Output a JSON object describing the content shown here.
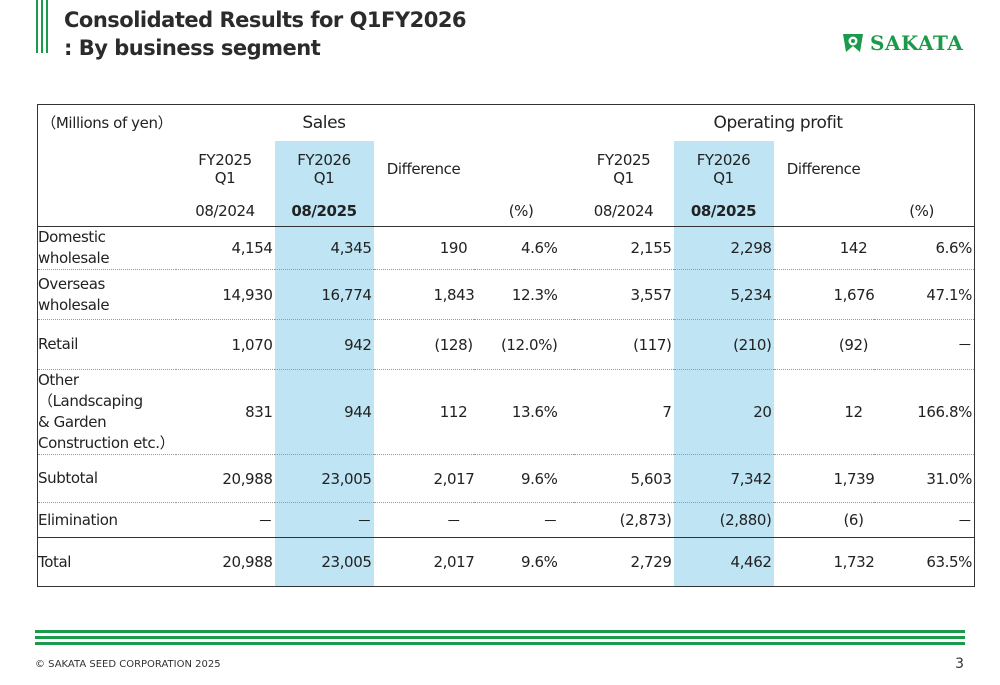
{
  "header": {
    "title_line1": "Consolidated Results for Q1FY2026",
    "title_line2": ": By business segment",
    "logo_text": "SAKATA"
  },
  "colors": {
    "brand_green": "#1a9a4a",
    "highlight_blue": "#bfe4f4"
  },
  "table": {
    "unit": "（Millions of yen）",
    "group_sales": "Sales",
    "group_op": "Operating profit",
    "col_prev_line1": "FY2025",
    "col_prev_line2": "Q1",
    "col_prev_date": "08/2024",
    "col_cur_line1": "FY2026",
    "col_cur_line2": "Q1",
    "col_cur_date": "08/2025",
    "col_diff": "Difference",
    "col_pct": "(%)",
    "rows": [
      {
        "label": "Domestic wholesale",
        "cells": [
          "4,154",
          "4,345",
          "190",
          "4.6%",
          "2,155",
          "2,298",
          "142",
          "6.6%"
        ]
      },
      {
        "label": "Overseas wholesale",
        "cells": [
          "14,930",
          "16,774",
          "1,843",
          "12.3%",
          "3,557",
          "5,234",
          "1,676",
          "47.1%"
        ]
      },
      {
        "label": "Retail",
        "cells": [
          "1,070",
          "942",
          "(128)",
          "(12.0%)",
          "(117)",
          "(210)",
          "(92)",
          "－"
        ]
      },
      {
        "label": "Other（Landscaping\n& Garden\nConstruction etc.）",
        "cells": [
          "831",
          "944",
          "112",
          "13.6%",
          "7",
          "20",
          "12",
          "166.8%"
        ]
      },
      {
        "label": "Subtotal",
        "cells": [
          "20,988",
          "23,005",
          "2,017",
          "9.6%",
          "5,603",
          "7,342",
          "1,739",
          "31.0%"
        ]
      },
      {
        "label": "Elimination",
        "cells": [
          "－",
          "－",
          "－",
          "－",
          "(2,873)",
          "(2,880)",
          "(6)",
          "－"
        ]
      },
      {
        "label": "Total",
        "cells": [
          "20,988",
          "23,005",
          "2,017",
          "9.6%",
          "2,729",
          "4,462",
          "1,732",
          "63.5%"
        ]
      }
    ]
  },
  "footer": {
    "copyright": "© SAKATA SEED CORPORATION 2025",
    "page": "3"
  }
}
